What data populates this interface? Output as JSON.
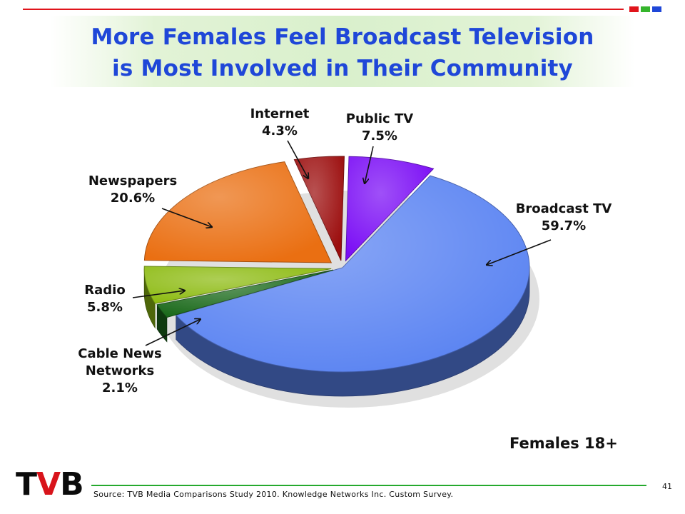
{
  "header": {
    "title_line1": "More Females Feel Broadcast Television",
    "title_line2": "is Most Involved in Their Community",
    "square_colors": [
      "#e0141b",
      "#35b52c",
      "#1f47d8"
    ]
  },
  "chart_data": {
    "type": "pie",
    "title": "More Females Feel Broadcast Television is Most Involved in Their Community",
    "subgroup": "Females 18+",
    "slices": [
      {
        "name": "Broadcast TV",
        "value": 59.7,
        "label": "59.7%",
        "color": "#5b84f2"
      },
      {
        "name": "Cable News Networks",
        "value": 2.1,
        "label": "2.1%",
        "color": "#1b6a1b"
      },
      {
        "name": "Radio",
        "value": 5.8,
        "label": "5.8%",
        "color": "#8dbb12"
      },
      {
        "name": "Newspapers",
        "value": 20.6,
        "label": "20.6%",
        "color": "#ea6f12"
      },
      {
        "name": "Internet",
        "value": 4.3,
        "label": "4.3%",
        "color": "#9c0e0e"
      },
      {
        "name": "Public TV",
        "value": 7.5,
        "label": "7.5%",
        "color": "#7a0cf5"
      }
    ]
  },
  "footer": {
    "logo_t": "T",
    "logo_v": "V",
    "logo_b": "B",
    "source": "Source: TVB Media Comparisons Study 2010.  Knowledge Networks Inc. Custom Survey.",
    "page_number": "41"
  }
}
